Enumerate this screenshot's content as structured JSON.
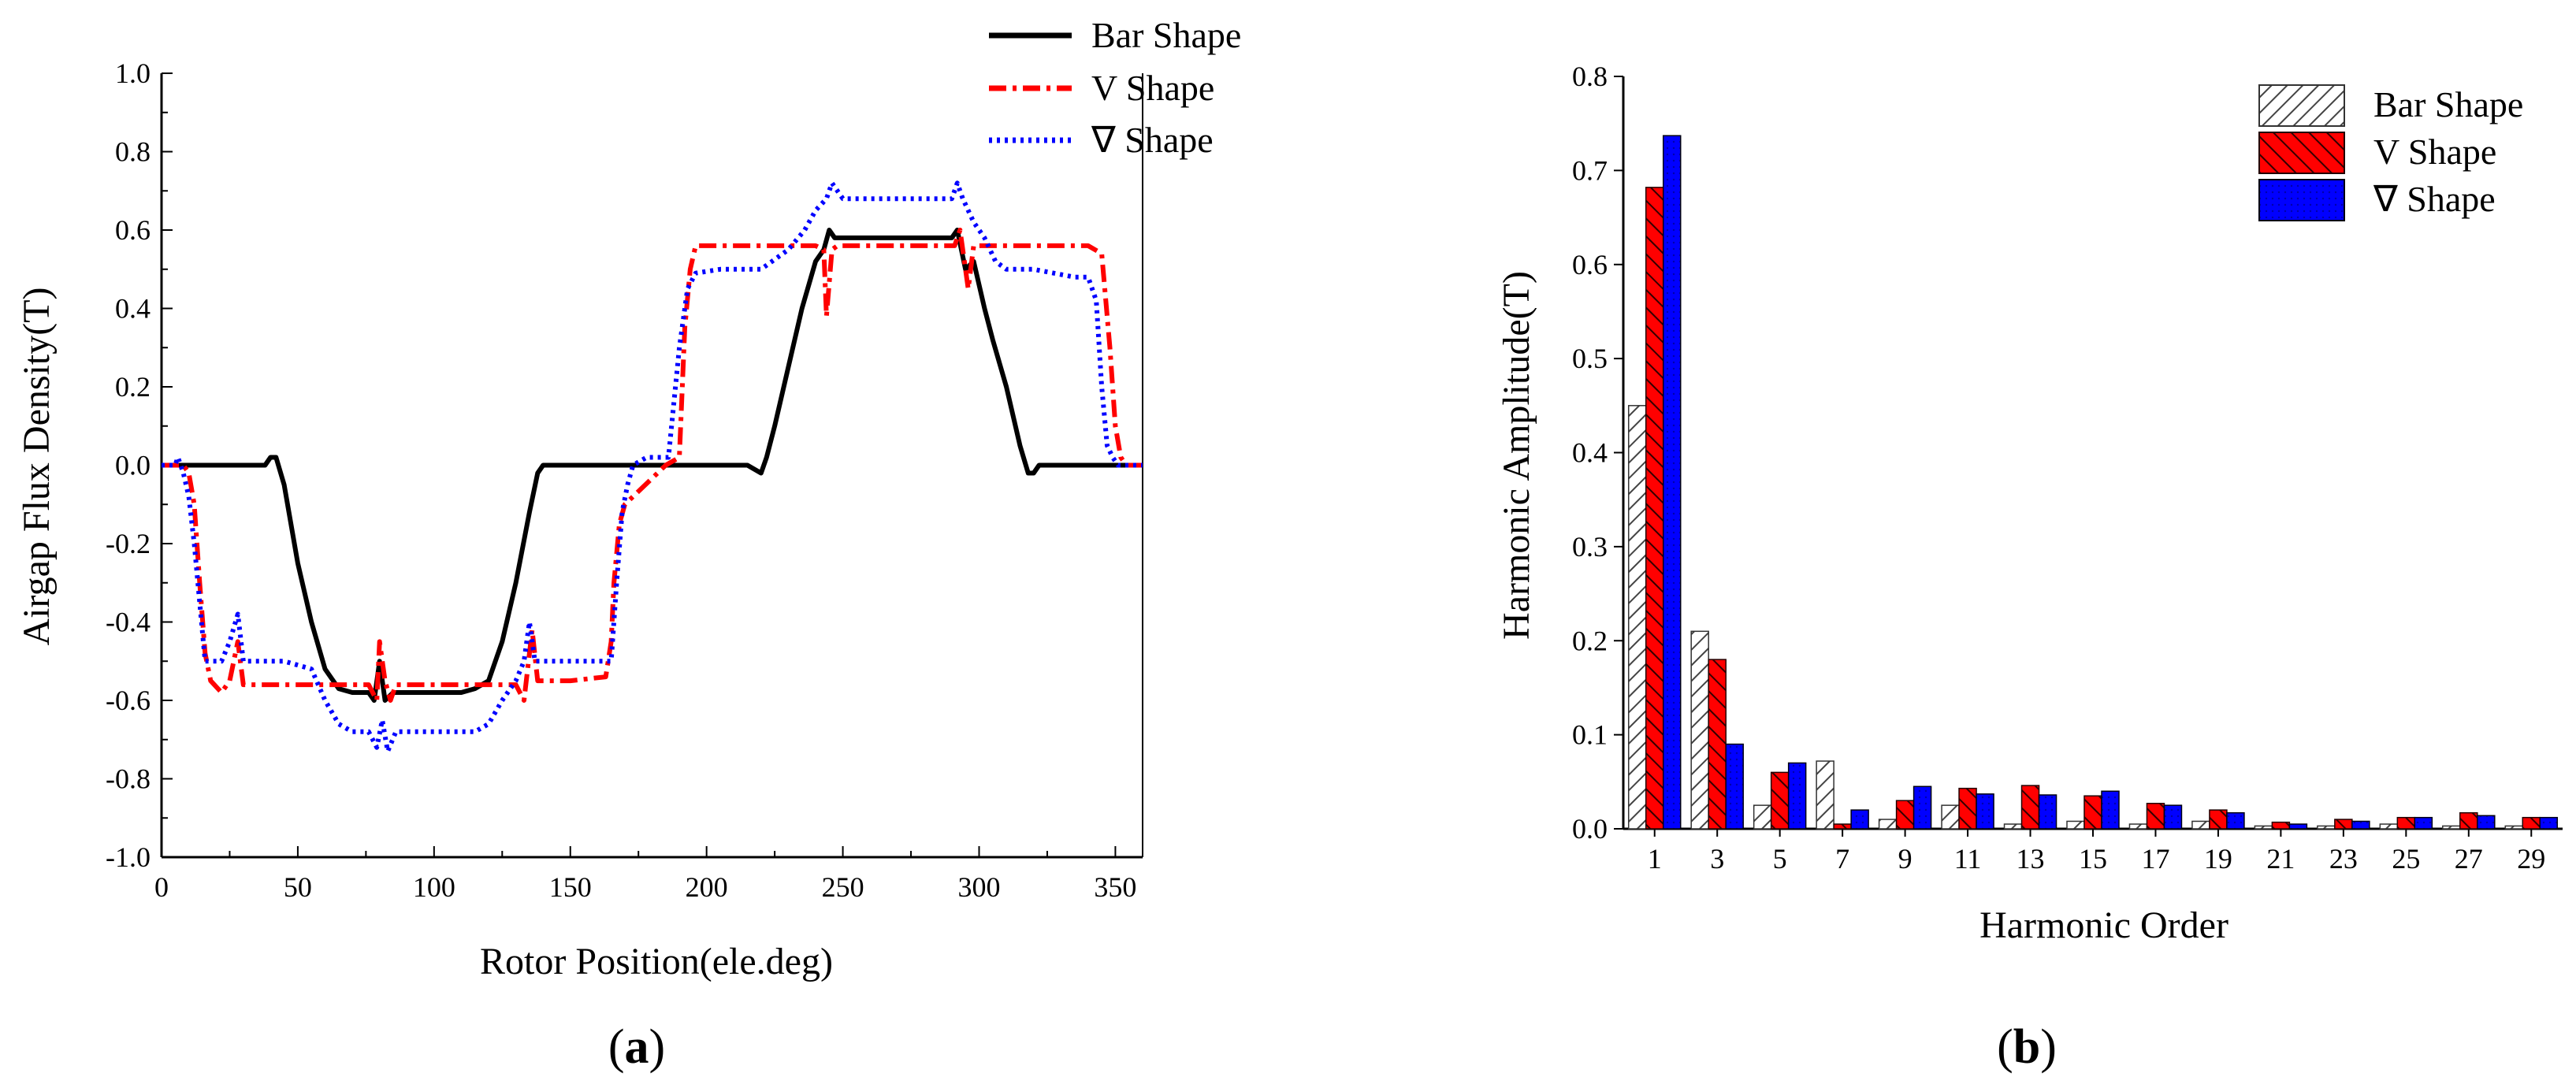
{
  "chart_data": [
    {
      "type": "line",
      "panel_label": "(a)",
      "panel_letter": "a",
      "xlabel": "Rotor Position(ele.deg)",
      "ylabel": "Airgap Flux Density(T)",
      "xlim": [
        0,
        360
      ],
      "ylim": [
        -1.0,
        1.0
      ],
      "xticks": [
        "0",
        "50",
        "100",
        "150",
        "200",
        "250",
        "300",
        "350"
      ],
      "yticks": [
        "-1.0",
        "-0.8",
        "-0.6",
        "-0.4",
        "-0.2",
        "0.0",
        "0.2",
        "0.4",
        "0.6",
        "0.8",
        "1.0"
      ],
      "legend_position": "top-right",
      "series": [
        {
          "name": "Bar Shape",
          "color": "#000000",
          "style": "solid",
          "points": [
            [
              0,
              0
            ],
            [
              38,
              0
            ],
            [
              40,
              0.02
            ],
            [
              42,
              0.02
            ],
            [
              45,
              -0.05
            ],
            [
              50,
              -0.25
            ],
            [
              55,
              -0.4
            ],
            [
              60,
              -0.52
            ],
            [
              65,
              -0.57
            ],
            [
              70,
              -0.58
            ],
            [
              76,
              -0.58
            ],
            [
              78,
              -0.6
            ],
            [
              80,
              -0.5
            ],
            [
              82,
              -0.6
            ],
            [
              85,
              -0.58
            ],
            [
              90,
              -0.58
            ],
            [
              100,
              -0.58
            ],
            [
              110,
              -0.58
            ],
            [
              115,
              -0.57
            ],
            [
              120,
              -0.55
            ],
            [
              125,
              -0.45
            ],
            [
              130,
              -0.3
            ],
            [
              135,
              -0.12
            ],
            [
              138,
              -0.02
            ],
            [
              140,
              0
            ],
            [
              180,
              0
            ],
            [
              215,
              0
            ],
            [
              220,
              -0.02
            ],
            [
              222,
              0.02
            ],
            [
              225,
              0.1
            ],
            [
              230,
              0.25
            ],
            [
              235,
              0.4
            ],
            [
              240,
              0.52
            ],
            [
              243,
              0.55
            ],
            [
              245,
              0.6
            ],
            [
              247,
              0.58
            ],
            [
              250,
              0.58
            ],
            [
              260,
              0.58
            ],
            [
              270,
              0.58
            ],
            [
              280,
              0.58
            ],
            [
              290,
              0.58
            ],
            [
              292,
              0.6
            ],
            [
              295,
              0.5
            ],
            [
              298,
              0.52
            ],
            [
              302,
              0.4
            ],
            [
              305,
              0.32
            ],
            [
              310,
              0.2
            ],
            [
              315,
              0.05
            ],
            [
              318,
              -0.02
            ],
            [
              320,
              -0.02
            ],
            [
              322,
              0
            ],
            [
              360,
              0
            ]
          ]
        },
        {
          "name": "V Shape",
          "color": "#ff0000",
          "style": "dashdot",
          "points": [
            [
              0,
              0
            ],
            [
              8,
              0
            ],
            [
              10,
              -0.02
            ],
            [
              12,
              -0.1
            ],
            [
              14,
              -0.3
            ],
            [
              16,
              -0.48
            ],
            [
              18,
              -0.55
            ],
            [
              22,
              -0.58
            ],
            [
              25,
              -0.55
            ],
            [
              28,
              -0.45
            ],
            [
              30,
              -0.56
            ],
            [
              40,
              -0.56
            ],
            [
              60,
              -0.56
            ],
            [
              76,
              -0.56
            ],
            [
              79,
              -0.6
            ],
            [
              80,
              -0.45
            ],
            [
              82,
              -0.55
            ],
            [
              84,
              -0.6
            ],
            [
              86,
              -0.56
            ],
            [
              100,
              -0.56
            ],
            [
              120,
              -0.56
            ],
            [
              130,
              -0.56
            ],
            [
              133,
              -0.6
            ],
            [
              136,
              -0.42
            ],
            [
              138,
              -0.55
            ],
            [
              150,
              -0.55
            ],
            [
              163,
              -0.54
            ],
            [
              165,
              -0.45
            ],
            [
              166,
              -0.3
            ],
            [
              168,
              -0.15
            ],
            [
              170,
              -0.1
            ],
            [
              185,
              0
            ],
            [
              190,
              0.02
            ],
            [
              192,
              0.35
            ],
            [
              194,
              0.5
            ],
            [
              196,
              0.56
            ],
            [
              200,
              0.56
            ],
            [
              220,
              0.56
            ],
            [
              240,
              0.56
            ],
            [
              243,
              0.55
            ],
            [
              244,
              0.38
            ],
            [
              246,
              0.55
            ],
            [
              248,
              0.56
            ],
            [
              260,
              0.56
            ],
            [
              280,
              0.56
            ],
            [
              291,
              0.56
            ],
            [
              293,
              0.6
            ],
            [
              296,
              0.45
            ],
            [
              298,
              0.56
            ],
            [
              320,
              0.56
            ],
            [
              340,
              0.56
            ],
            [
              345,
              0.54
            ],
            [
              348,
              0.3
            ],
            [
              350,
              0.1
            ],
            [
              352,
              0.02
            ],
            [
              354,
              0
            ],
            [
              360,
              0
            ]
          ]
        },
        {
          "name": "∇ Shape",
          "color": "#0000ff",
          "style": "dotted",
          "points": [
            [
              0,
              0
            ],
            [
              5,
              0
            ],
            [
              6,
              0.02
            ],
            [
              8,
              -0.02
            ],
            [
              10,
              -0.08
            ],
            [
              12,
              -0.2
            ],
            [
              14,
              -0.35
            ],
            [
              16,
              -0.5
            ],
            [
              18,
              -0.5
            ],
            [
              22,
              -0.5
            ],
            [
              25,
              -0.45
            ],
            [
              28,
              -0.38
            ],
            [
              30,
              -0.5
            ],
            [
              45,
              -0.5
            ],
            [
              55,
              -0.52
            ],
            [
              60,
              -0.6
            ],
            [
              65,
              -0.66
            ],
            [
              70,
              -0.68
            ],
            [
              76,
              -0.68
            ],
            [
              79,
              -0.72
            ],
            [
              81,
              -0.65
            ],
            [
              83,
              -0.73
            ],
            [
              86,
              -0.68
            ],
            [
              100,
              -0.68
            ],
            [
              115,
              -0.68
            ],
            [
              120,
              -0.66
            ],
            [
              125,
              -0.6
            ],
            [
              130,
              -0.55
            ],
            [
              133,
              -0.5
            ],
            [
              135,
              -0.4
            ],
            [
              137,
              -0.5
            ],
            [
              140,
              -0.5
            ],
            [
              155,
              -0.5
            ],
            [
              165,
              -0.5
            ],
            [
              167,
              -0.3
            ],
            [
              169,
              -0.12
            ],
            [
              171,
              -0.05
            ],
            [
              173,
              0
            ],
            [
              178,
              0.02
            ],
            [
              186,
              0.02
            ],
            [
              190,
              0.3
            ],
            [
              193,
              0.45
            ],
            [
              196,
              0.49
            ],
            [
              205,
              0.5
            ],
            [
              220,
              0.5
            ],
            [
              230,
              0.55
            ],
            [
              236,
              0.6
            ],
            [
              240,
              0.65
            ],
            [
              244,
              0.68
            ],
            [
              246,
              0.72
            ],
            [
              248,
              0.7
            ],
            [
              250,
              0.68
            ],
            [
              270,
              0.68
            ],
            [
              290,
              0.68
            ],
            [
              292,
              0.72
            ],
            [
              294,
              0.68
            ],
            [
              298,
              0.62
            ],
            [
              302,
              0.58
            ],
            [
              306,
              0.52
            ],
            [
              310,
              0.5
            ],
            [
              320,
              0.5
            ],
            [
              335,
              0.48
            ],
            [
              340,
              0.48
            ],
            [
              343,
              0.42
            ],
            [
              345,
              0.2
            ],
            [
              347,
              0.05
            ],
            [
              349,
              0.02
            ],
            [
              351,
              0
            ],
            [
              360,
              0
            ]
          ]
        }
      ]
    },
    {
      "type": "bar",
      "panel_label": "(b)",
      "panel_letter": "b",
      "xlabel": "Harmonic Order",
      "ylabel": "Harmonic Amplitude(T)",
      "ylim": [
        0,
        0.8
      ],
      "yticks": [
        "0.0",
        "0.1",
        "0.2",
        "0.3",
        "0.4",
        "0.5",
        "0.6",
        "0.7",
        "0.8"
      ],
      "categories": [
        "1",
        "3",
        "5",
        "7",
        "9",
        "11",
        "13",
        "15",
        "17",
        "19",
        "21",
        "23",
        "25",
        "27",
        "29"
      ],
      "legend_position": "top-right",
      "series": [
        {
          "name": "Bar Shape",
          "color": "#ffffff",
          "pattern": "hatch-light",
          "values": [
            0.45,
            0.21,
            0.025,
            0.072,
            0.01,
            0.025,
            0.005,
            0.008,
            0.005,
            0.008,
            0.003,
            0.003,
            0.005,
            0.003,
            0.003
          ]
        },
        {
          "name": "V Shape",
          "color": "#ff0000",
          "pattern": "hatch-dark",
          "values": [
            0.682,
            0.18,
            0.06,
            0.005,
            0.03,
            0.043,
            0.046,
            0.035,
            0.027,
            0.02,
            0.007,
            0.01,
            0.012,
            0.017,
            0.012
          ]
        },
        {
          "name": "∇ Shape",
          "color": "#0000ff",
          "pattern": "solid",
          "values": [
            0.737,
            0.09,
            0.07,
            0.02,
            0.045,
            0.037,
            0.036,
            0.04,
            0.025,
            0.017,
            0.005,
            0.008,
            0.012,
            0.014,
            0.012
          ]
        }
      ]
    }
  ]
}
